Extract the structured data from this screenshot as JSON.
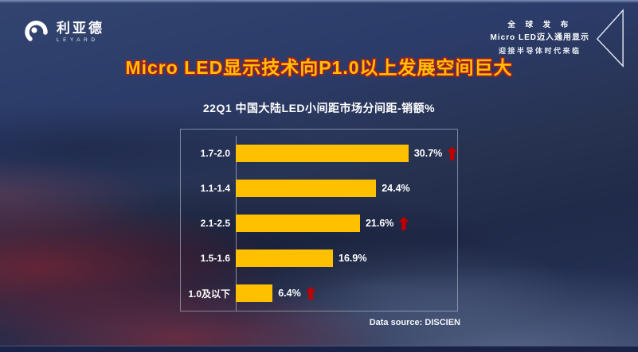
{
  "slide": {
    "title": "Micro LED显示技术向P1.0以上发展空间巨大",
    "logo": {
      "cn": "利亚德",
      "en": "LEYARD"
    },
    "badge": {
      "line1": "全 球 发 布",
      "line2": "Micro LED迈入通用显示",
      "line3": "迎接半导体时代来临"
    },
    "source": "Data source: DISCIEN"
  },
  "colors": {
    "title_fill": "#FFC000",
    "title_stroke": "#A32020",
    "bar_color": "#FFC000",
    "arrow_color": "#C00000"
  },
  "icons": {
    "logo_mark": "leyard-swirl",
    "badge_shape": "screen-outline-triangle",
    "up_arrow": "block-up-arrow"
  },
  "chart_data": {
    "type": "bar",
    "orientation": "horizontal",
    "title": "22Q1 中国大陆LED小间距市场分间距-销额%",
    "categories": [
      "1.7-2.0",
      "1.1-1.4",
      "2.1-2.5",
      "1.5-1.6",
      "1.0及以下"
    ],
    "values": [
      30.7,
      24.4,
      21.6,
      16.9,
      6.4
    ],
    "value_labels": [
      "30.7%",
      "24.4%",
      "21.6%",
      "16.9%",
      "6.4%"
    ],
    "up_arrows": [
      true,
      false,
      true,
      false,
      true
    ],
    "xlim": [
      0,
      38.5
    ],
    "grid": false,
    "legend": "none"
  }
}
